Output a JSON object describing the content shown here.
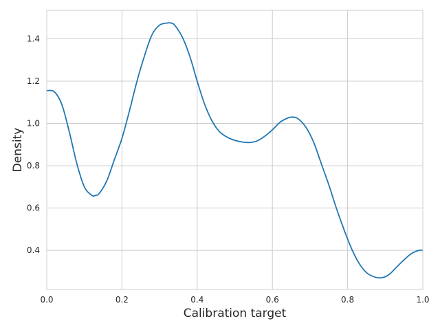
{
  "chart_data": {
    "type": "line",
    "title": "",
    "xlabel": "Calibration target",
    "ylabel": "Density",
    "xlim": [
      0.0,
      1.0
    ],
    "ylim": [
      0.215,
      1.535
    ],
    "grid": true,
    "legend": "none",
    "line_color": "#1f77b4",
    "grid_color": "#cccccc",
    "x_ticks": [
      {
        "value": 0.0,
        "label": "0.0"
      },
      {
        "value": 0.2,
        "label": "0.2"
      },
      {
        "value": 0.4,
        "label": "0.4"
      },
      {
        "value": 0.6,
        "label": "0.6"
      },
      {
        "value": 0.8,
        "label": "0.8"
      },
      {
        "value": 1.0,
        "label": "1.0"
      }
    ],
    "y_ticks": [
      {
        "value": 0.4,
        "label": "0.4"
      },
      {
        "value": 0.6,
        "label": "0.6"
      },
      {
        "value": 0.8,
        "label": "0.8"
      },
      {
        "value": 1.0,
        "label": "1.0"
      },
      {
        "value": 1.2,
        "label": "1.2"
      },
      {
        "value": 1.4,
        "label": "1.4"
      }
    ],
    "series": [
      {
        "x": [
          0.0,
          0.02,
          0.04,
          0.06,
          0.08,
          0.1,
          0.12,
          0.13,
          0.14,
          0.16,
          0.18,
          0.2,
          0.22,
          0.24,
          0.26,
          0.28,
          0.3,
          0.32,
          0.33,
          0.34,
          0.36,
          0.38,
          0.4,
          0.42,
          0.44,
          0.46,
          0.48,
          0.5,
          0.52,
          0.54,
          0.56,
          0.58,
          0.6,
          0.62,
          0.64,
          0.655,
          0.67,
          0.69,
          0.71,
          0.73,
          0.75,
          0.77,
          0.79,
          0.81,
          0.83,
          0.85,
          0.87,
          0.89,
          0.91,
          0.93,
          0.95,
          0.97,
          0.99,
          1.0
        ],
        "y": [
          1.155,
          1.15,
          1.09,
          0.96,
          0.81,
          0.7,
          0.66,
          0.66,
          0.67,
          0.73,
          0.83,
          0.93,
          1.06,
          1.2,
          1.32,
          1.42,
          1.465,
          1.475,
          1.475,
          1.465,
          1.41,
          1.32,
          1.2,
          1.09,
          1.01,
          0.96,
          0.935,
          0.92,
          0.912,
          0.91,
          0.918,
          0.94,
          0.97,
          1.005,
          1.025,
          1.03,
          1.02,
          0.98,
          0.91,
          0.81,
          0.71,
          0.6,
          0.5,
          0.41,
          0.34,
          0.295,
          0.275,
          0.27,
          0.285,
          0.32,
          0.355,
          0.385,
          0.4,
          0.4
        ]
      }
    ]
  }
}
